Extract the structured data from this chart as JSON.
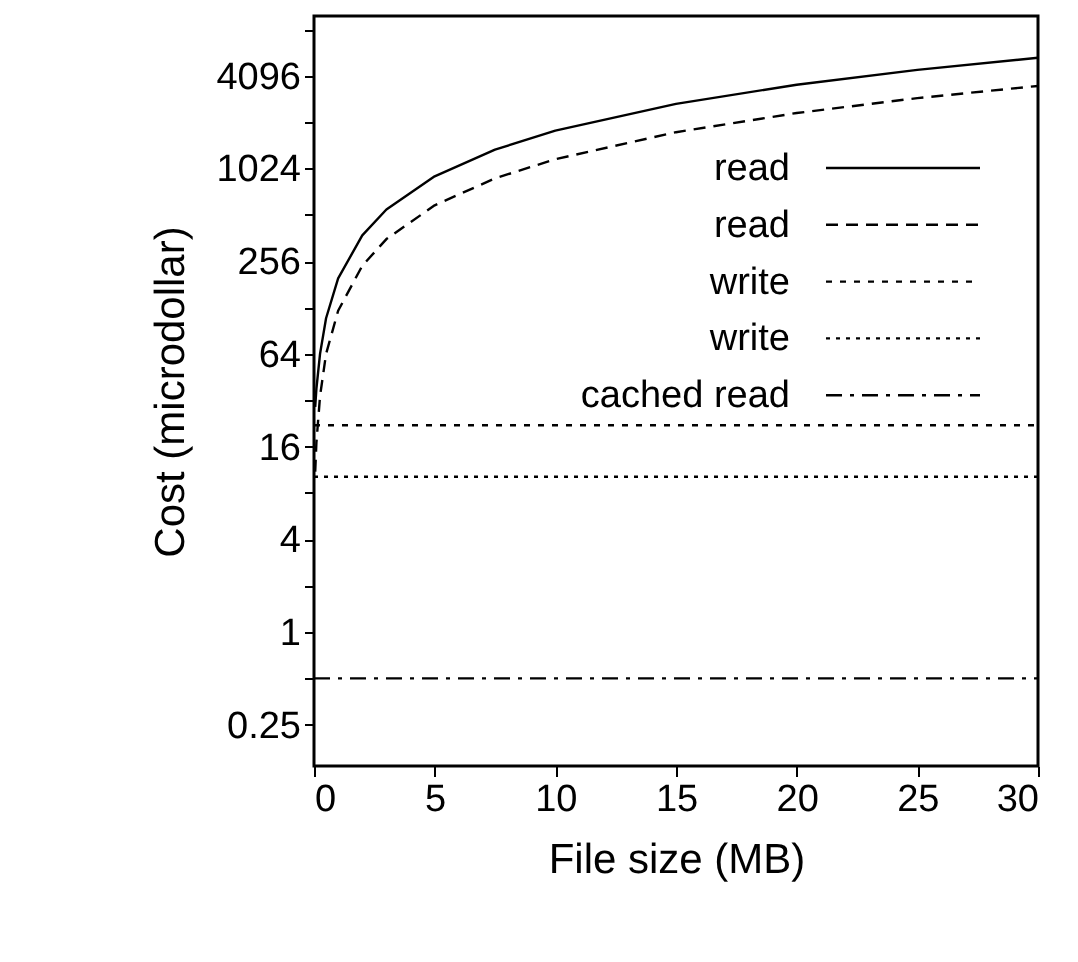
{
  "chart_data": {
    "type": "line",
    "xlabel": "File size (MB)",
    "ylabel": "Cost (microdollar)",
    "log": "y",
    "grid": false,
    "legend": "top right",
    "marker": "none",
    "xlim": [
      0,
      30
    ],
    "xticks": [
      0,
      5,
      10,
      15,
      20,
      25,
      30
    ],
    "ylim": [
      0.135,
      10000
    ],
    "yticks": [
      0.25,
      {
        "value": 0.5,
        "label": null
      },
      1,
      {
        "value": 2,
        "label": null
      },
      4,
      {
        "value": 8,
        "label": null
      },
      16,
      {
        "value": 32,
        "label": null
      },
      64,
      {
        "value": 128,
        "label": null
      },
      256,
      {
        "value": 512,
        "label": null
      },
      1024,
      {
        "value": 2048,
        "label": null
      },
      4096,
      {
        "value": 8192,
        "label": null
      }
    ],
    "series": [
      {
        "name": "read",
        "color": "#000000",
        "line_style": "solid",
        "x": [
          0.05,
          0.1,
          0.25,
          0.5,
          1,
          2,
          3,
          5,
          7.5,
          10,
          15,
          20,
          25,
          30
        ],
        "values": [
          29,
          38,
          64,
          109,
          198,
          376,
          554,
          910,
          1355,
          1800,
          2690,
          3580,
          4470,
          5360
        ]
      },
      {
        "name": "read",
        "color": "#000000",
        "line_style": "dashed",
        "x": [
          0.05,
          0.1,
          0.25,
          0.5,
          1,
          2,
          3,
          5,
          7.5,
          10,
          15,
          20,
          25,
          30
        ],
        "values": [
          11,
          17,
          34,
          64,
          122,
          239,
          356,
          590,
          883,
          1175,
          1760,
          2345,
          2930,
          3515
        ]
      },
      {
        "name": "write",
        "color": "#000000",
        "line_style": "dashed",
        "x": [
          0,
          30
        ],
        "values": [
          22,
          22
        ]
      },
      {
        "name": "write",
        "color": "#000000",
        "line_style": "dotted",
        "x": [
          0,
          30
        ],
        "values": [
          10.2,
          10.2
        ]
      },
      {
        "name": "cached read",
        "color": "#000000",
        "line_style": "dashdot",
        "x": [
          0,
          30
        ],
        "values": [
          0.5,
          0.5
        ]
      }
    ]
  }
}
